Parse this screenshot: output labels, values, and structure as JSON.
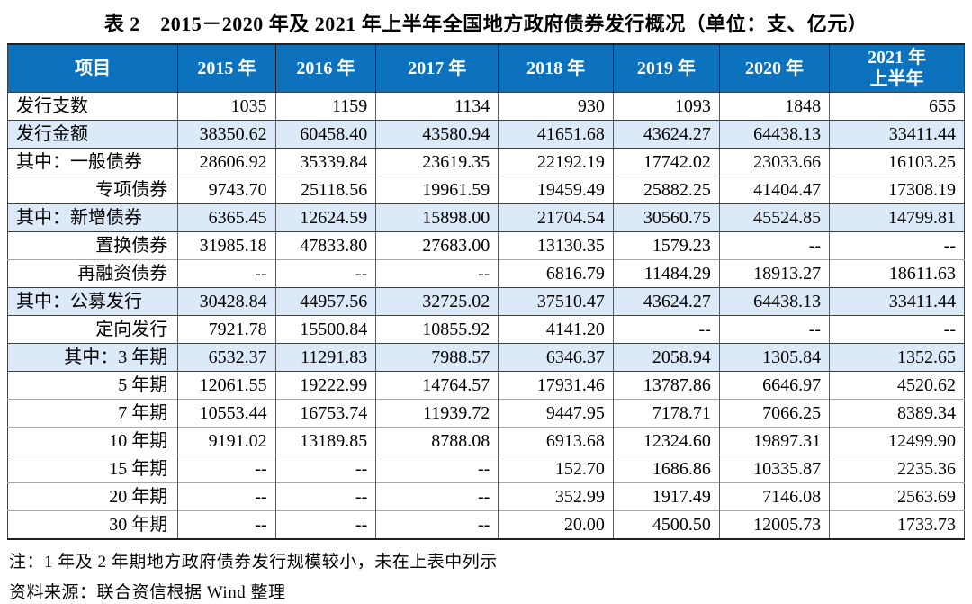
{
  "title": "表 2　2015－2020 年及 2021 年上半年全国地方政府债券发行概况（单位：支、亿元）",
  "table": {
    "headers": [
      "项目",
      "2015 年",
      "2016 年",
      "2017 年",
      "2018 年",
      "2019 年",
      "2020 年",
      "2021 年\n上半年"
    ],
    "col_widths_pct": [
      17.8,
      10.2,
      10.5,
      12.8,
      12.0,
      11.1,
      11.5,
      14.1
    ],
    "rows": [
      {
        "label": "发行支数",
        "align": "left",
        "shaded": false,
        "values": [
          "1035",
          "1159",
          "1134",
          "930",
          "1093",
          "1848",
          "655"
        ]
      },
      {
        "label": "发行金额",
        "align": "left",
        "shaded": true,
        "values": [
          "38350.62",
          "60458.40",
          "43580.94",
          "41651.68",
          "43624.27",
          "64438.13",
          "33411.44"
        ]
      },
      {
        "label": "其中：一般债券",
        "align": "left",
        "shaded": false,
        "values": [
          "28606.92",
          "35339.84",
          "23619.35",
          "22192.19",
          "17742.02",
          "23033.66",
          "16103.25"
        ]
      },
      {
        "label": "专项债券",
        "align": "right",
        "shaded": false,
        "values": [
          "9743.70",
          "25118.56",
          "19961.59",
          "19459.49",
          "25882.25",
          "41404.47",
          "17308.19"
        ]
      },
      {
        "label": "其中：新增债券",
        "align": "left",
        "shaded": true,
        "values": [
          "6365.45",
          "12624.59",
          "15898.00",
          "21704.54",
          "30560.75",
          "45524.85",
          "14799.81"
        ]
      },
      {
        "label": "置换债券",
        "align": "right",
        "shaded": false,
        "values": [
          "31985.18",
          "47833.80",
          "27683.00",
          "13130.35",
          "1579.23",
          "--",
          "--"
        ]
      },
      {
        "label": "再融资债券",
        "align": "right",
        "shaded": false,
        "values": [
          "--",
          "--",
          "--",
          "6816.79",
          "11484.29",
          "18913.27",
          "18611.63"
        ]
      },
      {
        "label": "其中：公募发行",
        "align": "left",
        "shaded": true,
        "values": [
          "30428.84",
          "44957.56",
          "32725.02",
          "37510.47",
          "43624.27",
          "64438.13",
          "33411.44"
        ]
      },
      {
        "label": "定向发行",
        "align": "right",
        "shaded": false,
        "values": [
          "7921.78",
          "15500.84",
          "10855.92",
          "4141.20",
          "--",
          "--",
          "--"
        ]
      },
      {
        "label": "其中：3 年期",
        "align": "right",
        "shaded": true,
        "values": [
          "6532.37",
          "11291.83",
          "7988.57",
          "6346.37",
          "2058.94",
          "1305.84",
          "1352.65"
        ]
      },
      {
        "label": "5 年期",
        "align": "right",
        "shaded": false,
        "values": [
          "12061.55",
          "19222.99",
          "14764.57",
          "17931.46",
          "13787.86",
          "6646.97",
          "4520.62"
        ]
      },
      {
        "label": "7 年期",
        "align": "right",
        "shaded": false,
        "values": [
          "10553.44",
          "16753.74",
          "11939.72",
          "9447.95",
          "7178.71",
          "7066.25",
          "8389.34"
        ]
      },
      {
        "label": "10 年期",
        "align": "right",
        "shaded": false,
        "values": [
          "9191.02",
          "13189.85",
          "8788.08",
          "6913.68",
          "12324.60",
          "19897.31",
          "12499.90"
        ]
      },
      {
        "label": "15 年期",
        "align": "right",
        "shaded": false,
        "values": [
          "--",
          "--",
          "--",
          "152.70",
          "1686.86",
          "10335.87",
          "2235.36"
        ]
      },
      {
        "label": "20 年期",
        "align": "right",
        "shaded": false,
        "values": [
          "--",
          "--",
          "--",
          "352.99",
          "1917.49",
          "7146.08",
          "2563.69"
        ]
      },
      {
        "label": "30 年期",
        "align": "right",
        "shaded": false,
        "values": [
          "--",
          "--",
          "--",
          "20.00",
          "4500.50",
          "12005.73",
          "1733.73"
        ]
      }
    ]
  },
  "notes": {
    "remark": "注：1 年及 2 年期地方政府债券发行规模较小，未在上表中列示",
    "source": "资料来源：联合资信根据 Wind 整理"
  },
  "colors": {
    "header_bg": "#0d72bd",
    "header_text": "#ffffff",
    "shaded_row_bg": "#dce9f8",
    "dark_border": "#3f3f3f",
    "light_border": "#a8a8a8"
  }
}
